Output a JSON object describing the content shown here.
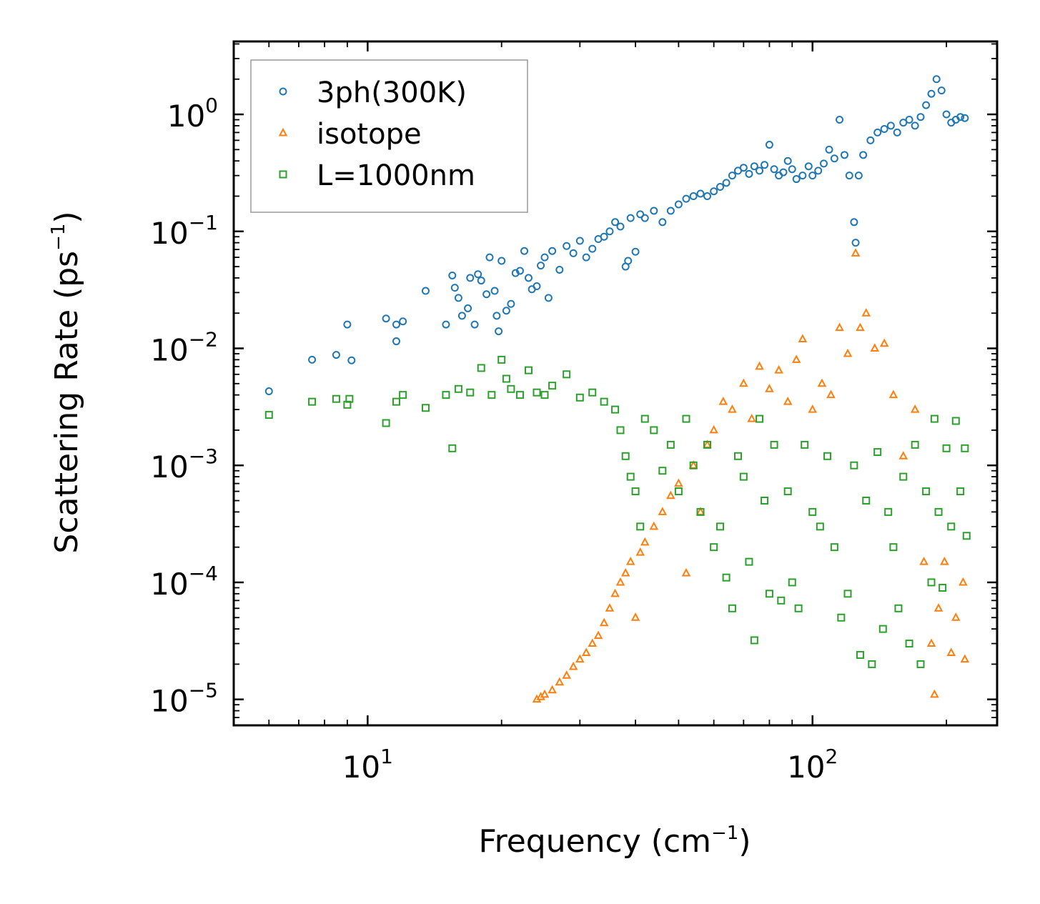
{
  "chart_data": {
    "type": "scatter",
    "xscale": "log",
    "yscale": "log",
    "xlabel": "Frequency (cm",
    "xlabel_exp": "−1",
    "xlabel_close": ")",
    "ylabel": "Scattering Rate (ps",
    "ylabel_exp": "−1",
    "ylabel_close": ")",
    "xlim": [
      5,
      260
    ],
    "ylim": [
      6e-06,
      4.2
    ],
    "x_ticks": [
      {
        "value": 10,
        "base": "10",
        "exp": "1"
      },
      {
        "value": 100,
        "base": "10",
        "exp": "2"
      }
    ],
    "y_ticks": [
      {
        "value": 1,
        "base": "10",
        "exp": "0"
      },
      {
        "value": 0.1,
        "base": "10",
        "exp": "−1"
      },
      {
        "value": 0.01,
        "base": "10",
        "exp": "−2"
      },
      {
        "value": 0.001,
        "base": "10",
        "exp": "−3"
      },
      {
        "value": 0.0001,
        "base": "10",
        "exp": "−4"
      },
      {
        "value": 1e-05,
        "base": "10",
        "exp": "−5"
      }
    ],
    "legend_position": "top-left",
    "series": [
      {
        "name": "3ph(300K)",
        "marker": "circle",
        "color": "#1f77b4",
        "points": [
          [
            6.0,
            0.0043
          ],
          [
            7.5,
            0.008
          ],
          [
            8.5,
            0.0088
          ],
          [
            9.0,
            0.016
          ],
          [
            9.2,
            0.0079
          ],
          [
            11.0,
            0.018
          ],
          [
            11.6,
            0.0115
          ],
          [
            11.6,
            0.016
          ],
          [
            12.0,
            0.017
          ],
          [
            13.5,
            0.031
          ],
          [
            15.0,
            0.016
          ],
          [
            15.5,
            0.042
          ],
          [
            15.7,
            0.033
          ],
          [
            16.0,
            0.027
          ],
          [
            16.3,
            0.019
          ],
          [
            16.8,
            0.022
          ],
          [
            17.0,
            0.04
          ],
          [
            17.4,
            0.016
          ],
          [
            17.7,
            0.043
          ],
          [
            18.0,
            0.038
          ],
          [
            18.5,
            0.029
          ],
          [
            18.8,
            0.06
          ],
          [
            19.3,
            0.031
          ],
          [
            19.5,
            0.019
          ],
          [
            19.7,
            0.014
          ],
          [
            20.0,
            0.056
          ],
          [
            20.5,
            0.021
          ],
          [
            21.0,
            0.024
          ],
          [
            21.5,
            0.044
          ],
          [
            22.0,
            0.046
          ],
          [
            22.5,
            0.068
          ],
          [
            23.0,
            0.04
          ],
          [
            23.4,
            0.032
          ],
          [
            24.0,
            0.034
          ],
          [
            24.5,
            0.051
          ],
          [
            25.0,
            0.06
          ],
          [
            25.5,
            0.027
          ],
          [
            26.0,
            0.068
          ],
          [
            27.0,
            0.047
          ],
          [
            28.0,
            0.075
          ],
          [
            29.0,
            0.065
          ],
          [
            30.0,
            0.083
          ],
          [
            31.0,
            0.06
          ],
          [
            32.0,
            0.071
          ],
          [
            33.0,
            0.086
          ],
          [
            34.0,
            0.09
          ],
          [
            35.0,
            0.1
          ],
          [
            36.0,
            0.12
          ],
          [
            37.0,
            0.11
          ],
          [
            38.0,
            0.05
          ],
          [
            38.5,
            0.056
          ],
          [
            39.0,
            0.13
          ],
          [
            40.0,
            0.067
          ],
          [
            41.0,
            0.14
          ],
          [
            42.0,
            0.13
          ],
          [
            44.0,
            0.15
          ],
          [
            46.0,
            0.12
          ],
          [
            48.0,
            0.15
          ],
          [
            50.0,
            0.17
          ],
          [
            52.0,
            0.19
          ],
          [
            54.0,
            0.2
          ],
          [
            56.0,
            0.21
          ],
          [
            58.0,
            0.2
          ],
          [
            60.0,
            0.22
          ],
          [
            62.0,
            0.24
          ],
          [
            64.0,
            0.26
          ],
          [
            66.0,
            0.3
          ],
          [
            68.0,
            0.33
          ],
          [
            70.0,
            0.35
          ],
          [
            72.0,
            0.31
          ],
          [
            74.0,
            0.36
          ],
          [
            76.0,
            0.33
          ],
          [
            78.0,
            0.37
          ],
          [
            80.0,
            0.55
          ],
          [
            82.0,
            0.34
          ],
          [
            84.0,
            0.3
          ],
          [
            86.0,
            0.32
          ],
          [
            88.0,
            0.4
          ],
          [
            90.0,
            0.34
          ],
          [
            92.0,
            0.28
          ],
          [
            95.0,
            0.3
          ],
          [
            98.0,
            0.36
          ],
          [
            100.0,
            0.3
          ],
          [
            103.0,
            0.33
          ],
          [
            106.0,
            0.38
          ],
          [
            109.0,
            0.5
          ],
          [
            112.0,
            0.42
          ],
          [
            115.0,
            0.9
          ],
          [
            118.0,
            0.45
          ],
          [
            121.0,
            0.3
          ],
          [
            124.0,
            0.12
          ],
          [
            125.0,
            0.08
          ],
          [
            127.0,
            0.3
          ],
          [
            130.0,
            0.45
          ],
          [
            135.0,
            0.6
          ],
          [
            140.0,
            0.7
          ],
          [
            145.0,
            0.75
          ],
          [
            150.0,
            0.8
          ],
          [
            155.0,
            0.7
          ],
          [
            160.0,
            0.85
          ],
          [
            165.0,
            0.9
          ],
          [
            170.0,
            0.8
          ],
          [
            175.0,
            0.95
          ],
          [
            180.0,
            1.2
          ],
          [
            185.0,
            1.5
          ],
          [
            190.0,
            2.0
          ],
          [
            195.0,
            1.6
          ],
          [
            200.0,
            1.0
          ],
          [
            205.0,
            0.85
          ],
          [
            210.0,
            0.9
          ],
          [
            215.0,
            0.95
          ],
          [
            220.0,
            0.93
          ]
        ]
      },
      {
        "name": "isotope",
        "marker": "triangle",
        "color": "#ff7f0e",
        "points": [
          [
            24.0,
            1e-05
          ],
          [
            24.5,
            1.05e-05
          ],
          [
            25.0,
            1.1e-05
          ],
          [
            26.0,
            1.2e-05
          ],
          [
            27.0,
            1.4e-05
          ],
          [
            28.0,
            1.6e-05
          ],
          [
            29.0,
            1.9e-05
          ],
          [
            30.0,
            2.2e-05
          ],
          [
            31.0,
            2.5e-05
          ],
          [
            32.0,
            3e-05
          ],
          [
            33.0,
            3.5e-05
          ],
          [
            34.0,
            4.5e-05
          ],
          [
            35.0,
            6e-05
          ],
          [
            36.0,
            8e-05
          ],
          [
            37.0,
            0.0001
          ],
          [
            38.0,
            0.00012
          ],
          [
            39.0,
            0.00015
          ],
          [
            40.0,
            5e-05
          ],
          [
            41.0,
            0.00018
          ],
          [
            42.0,
            0.00022
          ],
          [
            44.0,
            0.0003
          ],
          [
            46.0,
            0.0004
          ],
          [
            48.0,
            0.00055
          ],
          [
            50.0,
            0.0007
          ],
          [
            52.0,
            0.00012
          ],
          [
            54.0,
            0.001
          ],
          [
            56.0,
            0.0004
          ],
          [
            58.0,
            0.0015
          ],
          [
            60.0,
            0.002
          ],
          [
            63.0,
            0.0035
          ],
          [
            66.0,
            0.003
          ],
          [
            70.0,
            0.005
          ],
          [
            73.0,
            0.0025
          ],
          [
            76.0,
            0.007
          ],
          [
            80.0,
            0.0045
          ],
          [
            84.0,
            0.0065
          ],
          [
            88.0,
            0.0035
          ],
          [
            92.0,
            0.008
          ],
          [
            95.0,
            0.012
          ],
          [
            100.0,
            0.003
          ],
          [
            105.0,
            0.005
          ],
          [
            110.0,
            0.004
          ],
          [
            115.0,
            0.015
          ],
          [
            120.0,
            0.009
          ],
          [
            125.0,
            0.065
          ],
          [
            128.0,
            0.015
          ],
          [
            132.0,
            0.02
          ],
          [
            138.0,
            0.01
          ],
          [
            145.0,
            0.011
          ],
          [
            152.0,
            0.004
          ],
          [
            160.0,
            0.0012
          ],
          [
            170.0,
            0.003
          ],
          [
            178.0,
            0.00015
          ],
          [
            185.0,
            3e-05
          ],
          [
            188.0,
            1.1e-05
          ],
          [
            192.0,
            6e-05
          ],
          [
            198.0,
            0.00015
          ],
          [
            205.0,
            2.5e-05
          ],
          [
            210.0,
            5e-05
          ],
          [
            218.0,
            0.0001
          ],
          [
            220.0,
            2.2e-05
          ]
        ]
      },
      {
        "name": "L=1000nm",
        "marker": "square",
        "color": "#2ca02c",
        "points": [
          [
            6.0,
            0.0027
          ],
          [
            7.5,
            0.0035
          ],
          [
            8.5,
            0.0037
          ],
          [
            9.0,
            0.0033
          ],
          [
            9.1,
            0.0037
          ],
          [
            11.0,
            0.0023
          ],
          [
            11.6,
            0.0035
          ],
          [
            12.0,
            0.004
          ],
          [
            13.5,
            0.0031
          ],
          [
            15.0,
            0.004
          ],
          [
            15.5,
            0.0014
          ],
          [
            16.0,
            0.0045
          ],
          [
            17.0,
            0.0042
          ],
          [
            18.0,
            0.0068
          ],
          [
            19.0,
            0.004
          ],
          [
            20.0,
            0.008
          ],
          [
            20.5,
            0.0055
          ],
          [
            21.0,
            0.0045
          ],
          [
            22.0,
            0.004
          ],
          [
            23.0,
            0.0065
          ],
          [
            24.0,
            0.0042
          ],
          [
            25.0,
            0.004
          ],
          [
            26.0,
            0.0048
          ],
          [
            28.0,
            0.006
          ],
          [
            30.0,
            0.0038
          ],
          [
            32.0,
            0.0042
          ],
          [
            34.0,
            0.0035
          ],
          [
            36.0,
            0.003
          ],
          [
            37.0,
            0.002
          ],
          [
            38.0,
            0.0012
          ],
          [
            39.0,
            0.0008
          ],
          [
            40.0,
            0.0006
          ],
          [
            41.0,
            0.0003
          ],
          [
            42.0,
            0.0025
          ],
          [
            44.0,
            0.002
          ],
          [
            46.0,
            0.0009
          ],
          [
            48.0,
            0.0015
          ],
          [
            50.0,
            0.0006
          ],
          [
            52.0,
            0.0025
          ],
          [
            54.0,
            0.001
          ],
          [
            56.0,
            0.0004
          ],
          [
            58.0,
            0.0015
          ],
          [
            60.0,
            0.0002
          ],
          [
            62.0,
            0.0003
          ],
          [
            64.0,
            0.00011
          ],
          [
            66.0,
            6e-05
          ],
          [
            68.0,
            0.0012
          ],
          [
            70.0,
            0.0008
          ],
          [
            72.0,
            0.00015
          ],
          [
            74.0,
            3.2e-05
          ],
          [
            76.0,
            0.0025
          ],
          [
            78.0,
            0.0005
          ],
          [
            80.0,
            8e-05
          ],
          [
            82.0,
            0.0015
          ],
          [
            85.0,
            7e-05
          ],
          [
            88.0,
            0.0006
          ],
          [
            90.0,
            0.0001
          ],
          [
            93.0,
            6e-05
          ],
          [
            96.0,
            0.0015
          ],
          [
            100.0,
            0.0004
          ],
          [
            104.0,
            0.0003
          ],
          [
            108.0,
            0.0012
          ],
          [
            112.0,
            0.0002
          ],
          [
            116.0,
            5e-05
          ],
          [
            120.0,
            8e-05
          ],
          [
            124.0,
            0.001
          ],
          [
            128.0,
            2.4e-05
          ],
          [
            132.0,
            0.0005
          ],
          [
            136.0,
            2e-05
          ],
          [
            140.0,
            0.0013
          ],
          [
            144.0,
            4e-05
          ],
          [
            148.0,
            0.0004
          ],
          [
            152.0,
            0.0002
          ],
          [
            156.0,
            6e-05
          ],
          [
            160.0,
            0.0008
          ],
          [
            165.0,
            3e-05
          ],
          [
            170.0,
            0.0015
          ],
          [
            175.0,
            2e-05
          ],
          [
            180.0,
            0.0006
          ],
          [
            185.0,
            0.0001
          ],
          [
            188.0,
            0.0025
          ],
          [
            192.0,
            0.0004
          ],
          [
            196.0,
            9e-05
          ],
          [
            200.0,
            0.0014
          ],
          [
            205.0,
            0.0003
          ],
          [
            210.0,
            0.0024
          ],
          [
            215.0,
            0.0006
          ],
          [
            220.0,
            0.0014
          ],
          [
            222.0,
            0.00025
          ]
        ]
      }
    ]
  }
}
